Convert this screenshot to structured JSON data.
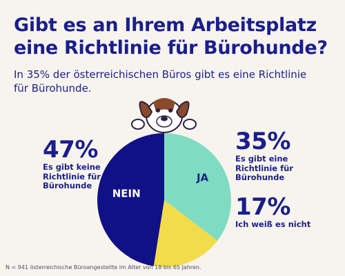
{
  "title": "Gibt es an Ihrem Arbeitsplatz eine Richtlinie für Bürohunde?",
  "subtitle": "In 35% der österreichischen Büros gibt es eine Richtlinie für Bürohunde.",
  "footnote": "N = 941 österreichische Büroangestellte im Alter von 18 bis 65 Jahren.",
  "colors": {
    "background": "#f7f4ee",
    "text": "#1a1e8c",
    "nein": "#101087",
    "ja": "#7fdcc2",
    "unknown": "#f2dc4a"
  },
  "illustration": "dog-peeking-over-chart",
  "chart_data": {
    "type": "pie",
    "slices": [
      {
        "label": "JA",
        "value": 35,
        "pct_label": "35%",
        "description": "Es gibt eine Richtlinie für Bürohunde",
        "color": "#7fdcc2"
      },
      {
        "label": "",
        "value": 17,
        "pct_label": "17%",
        "description": "Ich weiß es nicht",
        "color": "#f2dc4a"
      },
      {
        "label": "NEIN",
        "value": 47,
        "pct_label": "47%",
        "description": "Es gibt keine Richtlinie für Bürohunde",
        "color": "#101087"
      }
    ]
  }
}
